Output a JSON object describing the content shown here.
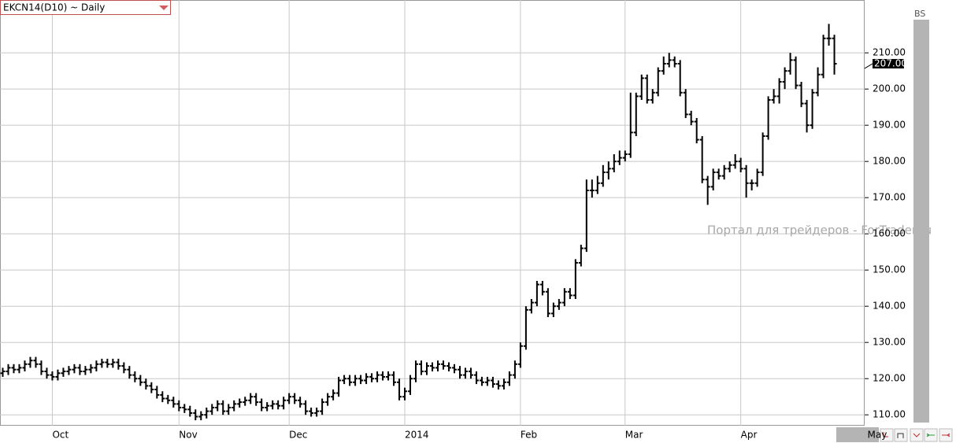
{
  "header": {
    "symbol": "EKCN14(D10) ~ Daily",
    "panel_label": "BS",
    "watermark": "Портал для трейдеров - ForTrader.ru"
  },
  "chart_data": {
    "type": "ohlc",
    "xlim": [
      -0.5,
      156.5
    ],
    "xticks": [
      {
        "value": 9,
        "label": "Oct"
      },
      {
        "value": 32,
        "label": "Nov"
      },
      {
        "value": 52,
        "label": "Dec"
      },
      {
        "value": 73,
        "label": "2014"
      },
      {
        "value": 94,
        "label": "Feb"
      },
      {
        "value": 113,
        "label": "Mar"
      },
      {
        "value": 134,
        "label": "Apr"
      },
      {
        "value": 157,
        "label": "May"
      }
    ],
    "ylim": [
      107,
      224.6
    ],
    "yticks": [
      {
        "value": 110,
        "label": "110.00"
      },
      {
        "value": 120,
        "label": "120.00"
      },
      {
        "value": 130,
        "label": "130.00"
      },
      {
        "value": 140,
        "label": "140.00"
      },
      {
        "value": 150,
        "label": "150.00"
      },
      {
        "value": 160,
        "label": "160.00"
      },
      {
        "value": 170,
        "label": "170.00"
      },
      {
        "value": 180,
        "label": "180.00"
      },
      {
        "value": 190,
        "label": "190.00"
      },
      {
        "value": 200,
        "label": "200.00"
      },
      {
        "value": 210,
        "label": "210.00"
      }
    ],
    "grid": true,
    "color": "#000000",
    "close_label": "207.00",
    "open": [
      121.5,
      122,
      123,
      122.5,
      123,
      124,
      125,
      124,
      122,
      121,
      120.5,
      121.5,
      122,
      122.5,
      123,
      122,
      122.5,
      123,
      124,
      124.5,
      124,
      124.5,
      123.5,
      122.5,
      121,
      120,
      119,
      118,
      117,
      115.5,
      114.5,
      114,
      113,
      112,
      111.5,
      110.5,
      109.5,
      110,
      111,
      112,
      113,
      111,
      112,
      113,
      113.5,
      114,
      115,
      113.5,
      112,
      112.5,
      113,
      112.5,
      114,
      115,
      114,
      113,
      111,
      110.5,
      111,
      113.5,
      115,
      116,
      119.5,
      120,
      119,
      120,
      119.5,
      120.5,
      120,
      121,
      120.5,
      121,
      119,
      115,
      116.5,
      120,
      124,
      122,
      123.5,
      123,
      124,
      123.5,
      123,
      122.5,
      121,
      122,
      121,
      119.5,
      119,
      119.5,
      118.5,
      118,
      119,
      121,
      124,
      129,
      139,
      141,
      146,
      144,
      138,
      140,
      141,
      144,
      143,
      152,
      156,
      172,
      172,
      174,
      177,
      178,
      180,
      181,
      182,
      188,
      198,
      203,
      197,
      199,
      205,
      207,
      208,
      207,
      199,
      193,
      191,
      186,
      175,
      173,
      177,
      176,
      178,
      179,
      180,
      178,
      174,
      174,
      177,
      187,
      197,
      198,
      202,
      205,
      208,
      201,
      196,
      190,
      199,
      204,
      214,
      214
    ],
    "high": [
      123,
      124,
      124,
      124,
      125,
      126,
      126,
      125,
      123,
      122,
      122.5,
      123,
      123.5,
      124,
      124,
      123.5,
      124,
      125,
      125.5,
      125.5,
      125.5,
      125.5,
      124.5,
      123.5,
      122,
      121,
      120,
      119,
      118,
      116.5,
      115.5,
      115,
      114,
      113,
      112.5,
      111.5,
      111,
      112,
      113,
      114,
      114,
      113,
      114,
      114.5,
      115,
      116,
      116,
      114.5,
      113.5,
      114,
      114,
      115,
      116,
      116,
      115,
      114,
      112,
      112,
      114.5,
      116,
      117,
      120.5,
      121,
      121,
      121,
      121,
      121.5,
      121.5,
      122,
      122,
      122,
      122,
      120,
      117.5,
      121,
      125,
      125,
      124.5,
      124.5,
      125,
      125,
      124.5,
      124,
      123.5,
      123,
      123,
      122,
      120.5,
      120.5,
      120.5,
      119.5,
      120,
      122,
      125,
      130,
      140,
      142,
      147,
      147,
      145,
      141,
      142,
      145,
      145,
      153,
      157,
      175,
      175,
      176,
      179,
      180,
      182,
      183,
      183,
      199,
      199,
      204,
      204,
      200,
      206,
      209,
      210,
      209,
      208,
      200,
      194,
      192,
      187,
      176,
      178,
      178,
      179,
      180,
      182,
      181,
      179,
      175,
      178,
      188,
      198,
      200,
      203,
      206,
      210,
      209,
      202,
      197,
      200,
      206,
      215,
      218,
      215
    ],
    "low": [
      120.5,
      121,
      121.5,
      121.5,
      122,
      123,
      123,
      121,
      120,
      119.5,
      119.5,
      120.5,
      121,
      121.5,
      121,
      121,
      121.5,
      122,
      123,
      123,
      123,
      122.5,
      121.5,
      120,
      119,
      118,
      117,
      116,
      114.5,
      113.5,
      113,
      112,
      111,
      110.5,
      109.5,
      108.5,
      108.5,
      109,
      110,
      111,
      110,
      110,
      111,
      112,
      112.5,
      113,
      112.5,
      111,
      111,
      111.5,
      111.5,
      111.5,
      113,
      113,
      112,
      110,
      109.5,
      109.5,
      110,
      112.5,
      114,
      115,
      118.5,
      118,
      118,
      118.5,
      118.5,
      119,
      119,
      119.5,
      119.5,
      118,
      114,
      114,
      115.5,
      119,
      121,
      121,
      122,
      122,
      122.5,
      122,
      121.5,
      120,
      120,
      120,
      118.5,
      118,
      118,
      117.5,
      117,
      117,
      118,
      120,
      123,
      128,
      138,
      140,
      143,
      137,
      137,
      139,
      140,
      142,
      142,
      151,
      155,
      170,
      171,
      173,
      175,
      177,
      179,
      180,
      181,
      187,
      197,
      196,
      196,
      198,
      204,
      206,
      206,
      198,
      192,
      190,
      185,
      174,
      168,
      172,
      175,
      175,
      177,
      178,
      177,
      170,
      172,
      173,
      176,
      186,
      196,
      196,
      200,
      204,
      200,
      195,
      188,
      189,
      198,
      203,
      212,
      204
    ],
    "close": [
      122,
      123,
      122.5,
      123,
      124,
      125,
      124,
      122,
      121,
      120.5,
      121.5,
      122,
      122.5,
      123,
      122,
      122.5,
      123,
      124,
      124.5,
      124,
      124.5,
      123.5,
      122.5,
      121,
      120,
      119,
      118,
      117,
      115.5,
      114.5,
      114,
      113,
      112,
      111.5,
      110.5,
      109.5,
      110,
      111,
      112,
      113,
      111,
      112,
      113,
      113.5,
      114,
      115,
      113.5,
      112,
      112.5,
      113,
      112.5,
      114,
      115,
      114,
      113,
      111,
      110.5,
      111,
      113.5,
      115,
      116,
      119.5,
      120,
      119,
      120,
      119.5,
      120.5,
      120,
      121,
      120.5,
      121,
      119,
      115,
      116.5,
      120,
      124,
      122,
      123.5,
      123,
      124,
      123.5,
      123,
      122.5,
      121,
      122,
      121,
      119.5,
      119,
      119.5,
      118.5,
      118,
      119,
      121,
      124,
      129,
      139,
      141,
      146,
      144,
      138,
      140,
      141,
      144,
      143,
      152,
      156,
      172,
      172,
      174,
      177,
      178,
      180,
      181,
      182,
      188,
      198,
      203,
      197,
      199,
      205,
      207,
      208,
      207,
      199,
      193,
      191,
      186,
      175,
      173,
      177,
      176,
      178,
      179,
      180,
      178,
      174,
      174,
      177,
      187,
      197,
      198,
      202,
      205,
      208,
      201,
      196,
      190,
      199,
      204,
      214,
      214,
      207
    ]
  }
}
